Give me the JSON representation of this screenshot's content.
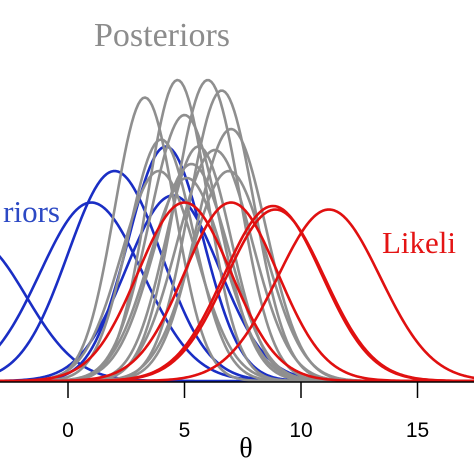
{
  "chart_data": {
    "type": "line",
    "xlabel": "θ",
    "xlim": [
      -5.5,
      18
    ],
    "ylim": [
      0,
      0.45
    ],
    "xticks": [
      0,
      5,
      10,
      15
    ],
    "grid": false,
    "annotations": [
      {
        "text": "Posteriors",
        "color": "#8c8c8c"
      },
      {
        "text": "riors",
        "color": "#2c49c4"
      },
      {
        "text": "Likeli",
        "color": "#e41414"
      }
    ],
    "series": [
      {
        "group": "priors",
        "color": "#1a2ec4",
        "curves": [
          {
            "mean": 1.0,
            "sd": 2.2,
            "peak": 0.255
          },
          {
            "mean": 2.0,
            "sd": 2.0,
            "peak": 0.3
          },
          {
            "mean": 4.2,
            "sd": 1.6,
            "peak": 0.335
          },
          {
            "mean": 4.5,
            "sd": 2.0,
            "peak": 0.265
          },
          {
            "mean": -4.0,
            "sd": 2.2,
            "peak": 0.2
          }
        ]
      },
      {
        "group": "posteriors",
        "color": "#8f8f8f",
        "curves": [
          {
            "mean": 3.3,
            "sd": 1.3,
            "peak": 0.405
          },
          {
            "mean": 4.7,
            "sd": 1.3,
            "peak": 0.43
          },
          {
            "mean": 6.0,
            "sd": 1.4,
            "peak": 0.43
          },
          {
            "mean": 6.6,
            "sd": 1.4,
            "peak": 0.415
          },
          {
            "mean": 5.0,
            "sd": 1.5,
            "peak": 0.38
          },
          {
            "mean": 7.0,
            "sd": 1.5,
            "peak": 0.36
          },
          {
            "mean": 4.0,
            "sd": 1.4,
            "peak": 0.345
          },
          {
            "mean": 5.6,
            "sd": 1.4,
            "peak": 0.335
          },
          {
            "mean": 6.3,
            "sd": 1.6,
            "peak": 0.33
          },
          {
            "mean": 5.3,
            "sd": 1.6,
            "peak": 0.31
          },
          {
            "mean": 3.9,
            "sd": 1.6,
            "peak": 0.3
          },
          {
            "mean": 6.9,
            "sd": 1.6,
            "peak": 0.3
          },
          {
            "mean": 5.1,
            "sd": 1.6,
            "peak": 0.29
          }
        ]
      },
      {
        "group": "likelihoods",
        "color": "#e01010",
        "curves": [
          {
            "mean": 5.0,
            "sd": 2.0,
            "peak": 0.255
          },
          {
            "mean": 7.0,
            "sd": 2.0,
            "peak": 0.255
          },
          {
            "mean": 8.8,
            "sd": 2.1,
            "peak": 0.25
          },
          {
            "mean": 8.9,
            "sd": 2.1,
            "peak": 0.245
          },
          {
            "mean": 11.2,
            "sd": 2.2,
            "peak": 0.245
          }
        ]
      }
    ]
  }
}
